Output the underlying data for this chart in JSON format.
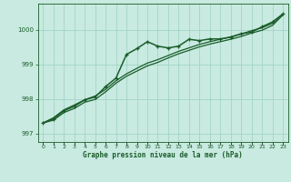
{
  "title": "Graphe pression niveau de la mer (hPa)",
  "bg_color": "#c8eae0",
  "grid_color": "#9dcfc3",
  "line_color": "#1a5c2a",
  "xlim": [
    -0.5,
    23.5
  ],
  "ylim": [
    996.75,
    1000.75
  ],
  "yticks": [
    997,
    998,
    999,
    1000
  ],
  "xticks": [
    0,
    1,
    2,
    3,
    4,
    5,
    6,
    7,
    8,
    9,
    10,
    11,
    12,
    13,
    14,
    15,
    16,
    17,
    18,
    19,
    20,
    21,
    22,
    23
  ],
  "hours": [
    0,
    1,
    2,
    3,
    4,
    5,
    6,
    7,
    8,
    9,
    10,
    11,
    12,
    13,
    14,
    15,
    16,
    17,
    18,
    19,
    20,
    21,
    22,
    23
  ],
  "pressure_main": [
    997.3,
    997.42,
    997.65,
    997.78,
    997.97,
    998.05,
    998.35,
    998.6,
    999.28,
    999.45,
    999.65,
    999.52,
    999.47,
    999.52,
    999.72,
    999.68,
    999.73,
    999.73,
    999.78,
    999.88,
    999.93,
    1000.08,
    1000.22,
    1000.45
  ],
  "pressure_low": [
    997.3,
    997.38,
    997.6,
    997.72,
    997.9,
    997.98,
    998.2,
    998.45,
    998.65,
    998.8,
    998.95,
    999.05,
    999.18,
    999.3,
    999.4,
    999.5,
    999.58,
    999.65,
    999.72,
    999.8,
    999.9,
    999.98,
    1000.12,
    1000.42
  ],
  "pressure_high": [
    997.3,
    997.45,
    997.68,
    997.82,
    997.97,
    998.08,
    998.27,
    998.52,
    998.72,
    998.88,
    999.03,
    999.13,
    999.25,
    999.37,
    999.47,
    999.57,
    999.65,
    999.72,
    999.79,
    999.87,
    999.97,
    1000.05,
    1000.18,
    1000.45
  ]
}
